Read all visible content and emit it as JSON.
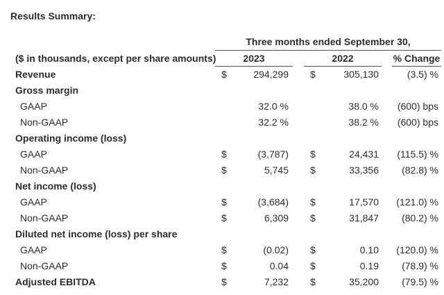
{
  "title": "Results Summary:",
  "header": {
    "period": "Three months ended September 30,",
    "units": "($ in thousands, except per share amounts)",
    "col_2023": "2023",
    "col_2022": "2022",
    "col_change": "% Change"
  },
  "rows": [
    {
      "label": "Revenue",
      "bold": true,
      "d23": "$",
      "v23": "294,299",
      "d22": "$",
      "v22": "305,130",
      "chg": "(3.5) %"
    },
    {
      "label": "Gross margin",
      "bold": true,
      "d23": "",
      "v23": "",
      "d22": "",
      "v22": "",
      "chg": ""
    },
    {
      "label": "GAAP",
      "bold": false,
      "d23": "",
      "v23": "32.0 %",
      "d22": "",
      "v22": "38.0 %",
      "chg": "(600) bps"
    },
    {
      "label": "Non-GAAP",
      "bold": false,
      "d23": "",
      "v23": "32.2 %",
      "d22": "",
      "v22": "38.2 %",
      "chg": "(600) bps"
    },
    {
      "label": "Operating income (loss)",
      "bold": true,
      "d23": "",
      "v23": "",
      "d22": "",
      "v22": "",
      "chg": ""
    },
    {
      "label": "GAAP",
      "bold": false,
      "d23": "$",
      "v23": "(3,787)",
      "d22": "$",
      "v22": "24,431",
      "chg": "(115.5) %"
    },
    {
      "label": "Non-GAAP",
      "bold": false,
      "d23": "$",
      "v23": "5,745",
      "d22": "$",
      "v22": "33,356",
      "chg": "(82.8) %"
    },
    {
      "label": "Net income (loss)",
      "bold": true,
      "d23": "",
      "v23": "",
      "d22": "",
      "v22": "",
      "chg": ""
    },
    {
      "label": "GAAP",
      "bold": false,
      "d23": "$",
      "v23": "(3,684)",
      "d22": "$",
      "v22": "17,570",
      "chg": "(121.0) %"
    },
    {
      "label": "Non-GAAP",
      "bold": false,
      "d23": "$",
      "v23": "6,309",
      "d22": "$",
      "v22": "31,847",
      "chg": "(80.2) %"
    },
    {
      "label": "Diluted net income (loss) per share",
      "bold": true,
      "d23": "",
      "v23": "",
      "d22": "",
      "v22": "",
      "chg": ""
    },
    {
      "label": "GAAP",
      "bold": false,
      "d23": "$",
      "v23": "(0.02)",
      "d22": "$",
      "v22": "0.10",
      "chg": "(120.0) %"
    },
    {
      "label": "Non-GAAP",
      "bold": false,
      "d23": "$",
      "v23": "0.04",
      "d22": "$",
      "v22": "0.19",
      "chg": "(78.9) %"
    },
    {
      "label": "Adjusted EBITDA",
      "bold": true,
      "d23": "$",
      "v23": "7,232",
      "d22": "$",
      "v22": "35,200",
      "chg": "(79.5) %"
    }
  ]
}
